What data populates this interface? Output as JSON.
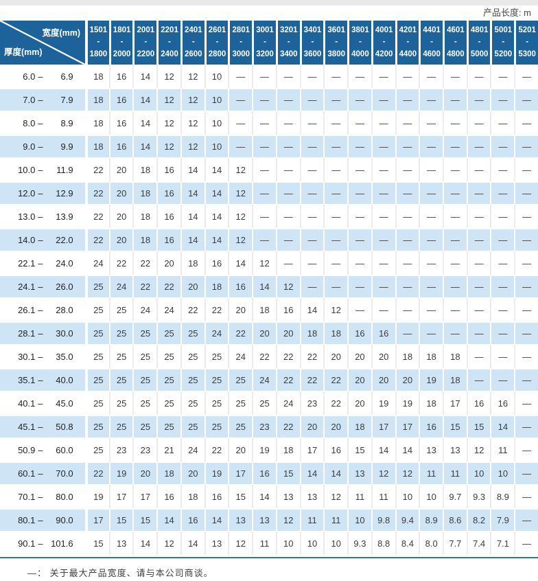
{
  "page": {
    "unit_note": "产品长度: m",
    "footnote": "—： 关于最大产品宽度、请与本公司商谈。"
  },
  "colors": {
    "header_bg": "#1d639b",
    "row_alt_bg": "#cfe5f5",
    "top_strip_bg": "#e9e9e9",
    "bottom_rule": "#3a6ea5",
    "number_text": "#3c3c3c",
    "header_text": "#ffffff"
  },
  "table": {
    "corner": {
      "top_label": "宽度(mm)",
      "bottom_label": "厚度(mm)"
    },
    "range_separator": "–",
    "columns": [
      {
        "line1": "1501",
        "line2": "- 1800"
      },
      {
        "line1": "1801",
        "line2": "- 2000"
      },
      {
        "line1": "2001",
        "line2": "- 2200"
      },
      {
        "line1": "2201",
        "line2": "- 2400"
      },
      {
        "line1": "2401",
        "line2": "- 2600"
      },
      {
        "line1": "2601",
        "line2": "- 2800"
      },
      {
        "line1": "2801",
        "line2": "- 3000"
      },
      {
        "line1": "3001",
        "line2": "- 3200"
      },
      {
        "line1": "3201",
        "line2": "- 3400"
      },
      {
        "line1": "3401",
        "line2": "- 3600"
      },
      {
        "line1": "3601",
        "line2": "- 3800"
      },
      {
        "line1": "3801",
        "line2": "- 4000"
      },
      {
        "line1": "4001",
        "line2": "- 4200"
      },
      {
        "line1": "4201",
        "line2": "- 4400"
      },
      {
        "line1": "4401",
        "line2": "- 4600"
      },
      {
        "line1": "4601",
        "line2": "- 4800"
      },
      {
        "line1": "4801",
        "line2": "- 5000"
      },
      {
        "line1": "5001",
        "line2": "- 5200"
      },
      {
        "line1": "5201",
        "line2": "- 5300"
      }
    ],
    "rows": [
      {
        "min": "6.0",
        "max": "6.9",
        "values": [
          "18",
          "16",
          "14",
          "12",
          "12",
          "10",
          "—",
          "—",
          "—",
          "—",
          "—",
          "—",
          "—",
          "—",
          "—",
          "—",
          "—",
          "—",
          "—"
        ]
      },
      {
        "min": "7.0",
        "max": "7.9",
        "values": [
          "18",
          "16",
          "14",
          "12",
          "12",
          "10",
          "—",
          "—",
          "—",
          "—",
          "—",
          "—",
          "—",
          "—",
          "—",
          "—",
          "—",
          "—",
          "—"
        ]
      },
      {
        "min": "8.0",
        "max": "8.9",
        "values": [
          "18",
          "16",
          "14",
          "12",
          "12",
          "10",
          "—",
          "—",
          "—",
          "—",
          "—",
          "—",
          "—",
          "—",
          "—",
          "—",
          "—",
          "—",
          "—"
        ]
      },
      {
        "min": "9.0",
        "max": "9.9",
        "values": [
          "18",
          "16",
          "14",
          "12",
          "12",
          "10",
          "—",
          "—",
          "—",
          "—",
          "—",
          "—",
          "—",
          "—",
          "—",
          "—",
          "—",
          "—",
          "—"
        ]
      },
      {
        "min": "10.0",
        "max": "11.9",
        "values": [
          "22",
          "20",
          "18",
          "16",
          "14",
          "14",
          "12",
          "—",
          "—",
          "—",
          "—",
          "—",
          "—",
          "—",
          "—",
          "—",
          "—",
          "—",
          "—"
        ]
      },
      {
        "min": "12.0",
        "max": "12.9",
        "values": [
          "22",
          "20",
          "18",
          "16",
          "14",
          "14",
          "12",
          "—",
          "—",
          "—",
          "—",
          "—",
          "—",
          "—",
          "—",
          "—",
          "—",
          "—",
          "—"
        ]
      },
      {
        "min": "13.0",
        "max": "13.9",
        "values": [
          "22",
          "20",
          "18",
          "16",
          "14",
          "14",
          "12",
          "—",
          "—",
          "—",
          "—",
          "—",
          "—",
          "—",
          "—",
          "—",
          "—",
          "—",
          "—"
        ]
      },
      {
        "min": "14.0",
        "max": "22.0",
        "values": [
          "22",
          "20",
          "18",
          "16",
          "14",
          "14",
          "12",
          "—",
          "—",
          "—",
          "—",
          "—",
          "—",
          "—",
          "—",
          "—",
          "—",
          "—",
          "—"
        ]
      },
      {
        "min": "22.1",
        "max": "24.0",
        "values": [
          "24",
          "22",
          "22",
          "20",
          "18",
          "16",
          "14",
          "12",
          "—",
          "—",
          "—",
          "—",
          "—",
          "—",
          "—",
          "—",
          "—",
          "—",
          "—"
        ]
      },
      {
        "min": "24.1",
        "max": "26.0",
        "values": [
          "25",
          "24",
          "22",
          "22",
          "20",
          "18",
          "16",
          "14",
          "12",
          "—",
          "—",
          "—",
          "—",
          "—",
          "—",
          "—",
          "—",
          "—",
          "—"
        ]
      },
      {
        "min": "26.1",
        "max": "28.0",
        "values": [
          "25",
          "25",
          "24",
          "24",
          "22",
          "22",
          "20",
          "18",
          "16",
          "14",
          "12",
          "—",
          "—",
          "—",
          "—",
          "—",
          "—",
          "—",
          "—"
        ]
      },
      {
        "min": "28.1",
        "max": "30.0",
        "values": [
          "25",
          "25",
          "25",
          "25",
          "25",
          "24",
          "22",
          "20",
          "20",
          "18",
          "18",
          "16",
          "16",
          "—",
          "—",
          "—",
          "—",
          "—",
          "—"
        ]
      },
      {
        "min": "30.1",
        "max": "35.0",
        "values": [
          "25",
          "25",
          "25",
          "25",
          "25",
          "25",
          "24",
          "22",
          "22",
          "22",
          "20",
          "20",
          "20",
          "18",
          "18",
          "18",
          "—",
          "—",
          "—"
        ]
      },
      {
        "min": "35.1",
        "max": "40.0",
        "values": [
          "25",
          "25",
          "25",
          "25",
          "25",
          "25",
          "25",
          "24",
          "22",
          "22",
          "22",
          "20",
          "20",
          "20",
          "19",
          "18",
          "—",
          "—",
          "—"
        ]
      },
      {
        "min": "40.1",
        "max": "45.0",
        "values": [
          "25",
          "25",
          "25",
          "25",
          "25",
          "25",
          "25",
          "25",
          "24",
          "23",
          "22",
          "20",
          "19",
          "19",
          "18",
          "17",
          "16",
          "16",
          "—"
        ]
      },
      {
        "min": "45.1",
        "max": "50.8",
        "values": [
          "25",
          "25",
          "25",
          "25",
          "25",
          "25",
          "25",
          "23",
          "22",
          "20",
          "20",
          "18",
          "17",
          "17",
          "16",
          "15",
          "15",
          "14",
          "—"
        ]
      },
      {
        "min": "50.9",
        "max": "60.0",
        "values": [
          "25",
          "23",
          "23",
          "21",
          "24",
          "22",
          "20",
          "19",
          "18",
          "17",
          "16",
          "15",
          "14",
          "14",
          "13",
          "13",
          "12",
          "11",
          "—"
        ]
      },
      {
        "min": "60.1",
        "max": "70.0",
        "values": [
          "22",
          "19",
          "20",
          "18",
          "20",
          "19",
          "17",
          "16",
          "15",
          "14",
          "14",
          "13",
          "12",
          "12",
          "11",
          "11",
          "10",
          "10",
          "—"
        ]
      },
      {
        "min": "70.1",
        "max": "80.0",
        "values": [
          "19",
          "17",
          "17",
          "16",
          "18",
          "16",
          "15",
          "14",
          "13",
          "13",
          "12",
          "11",
          "11",
          "10",
          "10",
          "9.7",
          "9.3",
          "8.9",
          "—"
        ]
      },
      {
        "min": "80.1",
        "max": "90.0",
        "values": [
          "17",
          "15",
          "15",
          "14",
          "16",
          "14",
          "13",
          "13",
          "12",
          "11",
          "11",
          "10",
          "9.8",
          "9.4",
          "8.9",
          "8.6",
          "8.2",
          "7.9",
          "—"
        ]
      },
      {
        "min": "90.1",
        "max": "101.6",
        "values": [
          "15",
          "13",
          "14",
          "12",
          "14",
          "13",
          "12",
          "11",
          "10",
          "10",
          "10",
          "9.3",
          "8.8",
          "8.4",
          "8.0",
          "7.7",
          "7.4",
          "7.1",
          "—"
        ]
      }
    ]
  }
}
